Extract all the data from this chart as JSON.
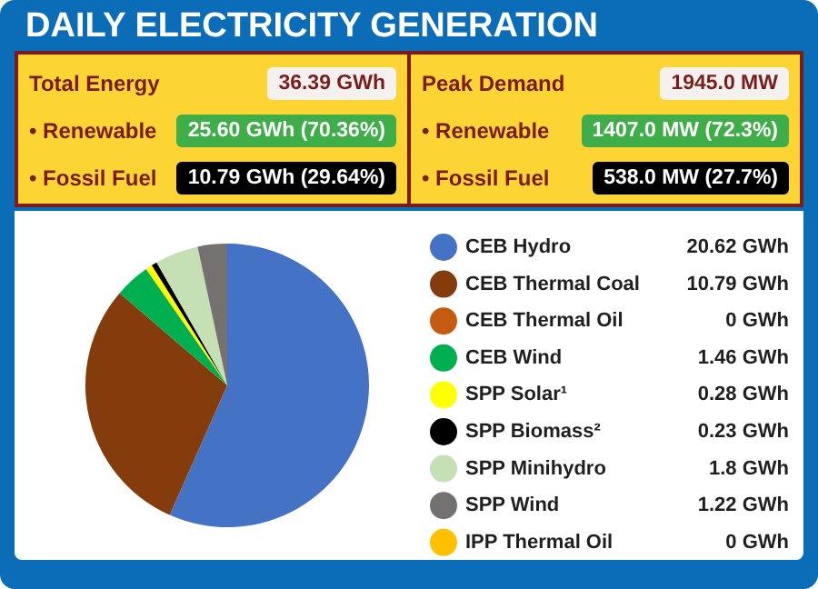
{
  "chart_data": [
    {
      "type": "other",
      "title": "DAILY ELECTRICITY GENERATION",
      "annotations": [
        "Total Energy",
        "36.39 GWh",
        "• Renewable",
        "25.60 GWh (70.36%)",
        "• Fossil Fuel",
        "10.79 GWh (29.64%)",
        "Peak Demand",
        "1945.0 MW",
        "• Renewable",
        "1407.0 MW (72.3%)",
        "• Fossil Fuel",
        "538.0 MW (27.7%)"
      ]
    },
    {
      "type": "pie",
      "categories": [
        "CEB Hydro",
        "CEB Thermal Coal",
        "CEB Thermal Oil",
        "CEB Wind",
        "SPP Solar¹",
        "SPP Biomass²",
        "SPP Minihydro",
        "SPP Wind",
        "IPP Thermal Oil"
      ],
      "values": [
        20.62,
        10.79,
        0,
        1.46,
        0.28,
        0.23,
        1.8,
        1.22,
        0
      ],
      "colors": [
        "#4472c4",
        "#843c0c",
        "#c55a11",
        "#00b050",
        "#ffff00",
        "#000000",
        "#c5e0b4",
        "#767171",
        "#ffc000"
      ],
      "value_labels": [
        "20.62 GWh",
        "10.79 GWh",
        "0 GWh",
        "1.46 GWh",
        "0.28 GWh",
        "0.23 GWh",
        "1.8 GWh",
        "1.22 GWh",
        "0 GWh"
      ],
      "legend": "right"
    }
  ]
}
